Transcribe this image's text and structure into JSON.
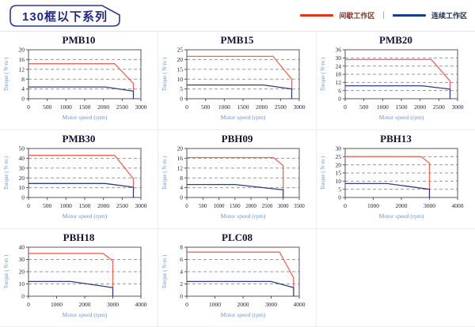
{
  "header": {
    "title": "130框以下系列",
    "legend_separator": "|",
    "legend": [
      {
        "label": "间歇工作区",
        "color": "#e0341b",
        "zone": "intermittent"
      },
      {
        "label": "连续工作区",
        "color": "#1e3a8c",
        "zone": "continuous"
      }
    ]
  },
  "colors": {
    "intermittent": "#e4695c",
    "continuous": "#2e3d7c",
    "grid": "#9a9a9a",
    "frame": "#55555e",
    "tick_text": "#1c1c30",
    "axis_label": "#6c96d6",
    "title_text": "#141432",
    "tag_border": "#2b3a8c"
  },
  "axis_labels": {
    "x": "Motor speed (rpm)",
    "y": "Torque ( N·m )"
  },
  "chart_data": [
    {
      "type": "line",
      "title": "PMB10",
      "xlabel": "Motor speed (rpm)",
      "ylabel": "Torque ( N·m )",
      "xlim": [
        0,
        3000
      ],
      "xticks": [
        0,
        500,
        1000,
        1500,
        2000,
        2500,
        3000
      ],
      "ylim": [
        0,
        20
      ],
      "yticks": [
        0,
        4,
        8,
        12,
        16,
        20
      ],
      "series": [
        {
          "name": "间歇工作区",
          "zone": "intermittent",
          "points": [
            [
              0,
              14.3
            ],
            [
              2300,
              14.3
            ],
            [
              2800,
              6.2
            ],
            [
              2800,
              3.2
            ]
          ]
        },
        {
          "name": "连续工作区",
          "zone": "continuous",
          "points": [
            [
              0,
              4.8
            ],
            [
              2050,
              4.8
            ],
            [
              2800,
              3.1
            ],
            [
              2800,
              0
            ]
          ]
        }
      ]
    },
    {
      "type": "line",
      "title": "PMB15",
      "xlabel": "Motor speed (rpm)",
      "ylabel": "Torque ( N·m )",
      "xlim": [
        0,
        3000
      ],
      "xticks": [
        0,
        500,
        1000,
        1500,
        2000,
        2500,
        3000
      ],
      "ylim": [
        0,
        25
      ],
      "yticks": [
        0,
        5,
        10,
        15,
        20,
        25
      ],
      "series": [
        {
          "name": "间歇工作区",
          "zone": "intermittent",
          "points": [
            [
              0,
              21.6
            ],
            [
              2300,
              21.6
            ],
            [
              2800,
              10
            ],
            [
              2800,
              5
            ]
          ]
        },
        {
          "name": "连续工作区",
          "zone": "continuous",
          "points": [
            [
              0,
              7
            ],
            [
              2050,
              7
            ],
            [
              2800,
              5
            ],
            [
              2800,
              0
            ]
          ]
        }
      ]
    },
    {
      "type": "line",
      "title": "PMB20",
      "xlabel": "Motor speed (rpm)",
      "ylabel": "Torque ( N·m )",
      "xlim": [
        0,
        3000
      ],
      "xticks": [
        0,
        500,
        1000,
        1500,
        2000,
        2500,
        3000
      ],
      "ylim": [
        0,
        36
      ],
      "yticks": [
        0,
        6,
        12,
        18,
        24,
        30,
        36
      ],
      "series": [
        {
          "name": "间歇工作区",
          "zone": "intermittent",
          "points": [
            [
              0,
              28.8
            ],
            [
              2300,
              28.8
            ],
            [
              2800,
              13
            ],
            [
              2800,
              7
            ]
          ]
        },
        {
          "name": "连续工作区",
          "zone": "continuous",
          "points": [
            [
              0,
              9.5
            ],
            [
              2050,
              9.5
            ],
            [
              2800,
              7
            ],
            [
              2800,
              0
            ]
          ]
        }
      ]
    },
    {
      "type": "line",
      "title": "PMB30",
      "xlabel": "Motor speed (rpm)",
      "ylabel": "Torque ( N·m )",
      "xlim": [
        0,
        3000
      ],
      "xticks": [
        0,
        500,
        1000,
        1500,
        2000,
        2500,
        3000
      ],
      "ylim": [
        0,
        50
      ],
      "yticks": [
        0,
        10,
        20,
        30,
        40,
        50
      ],
      "series": [
        {
          "name": "间歇工作区",
          "zone": "intermittent",
          "points": [
            [
              0,
              43
            ],
            [
              2300,
              43
            ],
            [
              2800,
              19
            ],
            [
              2800,
              11
            ]
          ]
        },
        {
          "name": "连续工作区",
          "zone": "continuous",
          "points": [
            [
              0,
              14.3
            ],
            [
              2050,
              14.3
            ],
            [
              2800,
              10.5
            ],
            [
              2800,
              0
            ]
          ]
        }
      ]
    },
    {
      "type": "line",
      "title": "PBH09",
      "xlabel": "Motor speed (rpm)",
      "ylabel": "Torque ( N·m )",
      "xlim": [
        0,
        3500
      ],
      "xticks": [
        0,
        500,
        1000,
        1500,
        2000,
        2500,
        3000,
        3500
      ],
      "ylim": [
        0,
        20
      ],
      "yticks": [
        0,
        4,
        8,
        12,
        16,
        20
      ],
      "series": [
        {
          "name": "间歇工作区",
          "zone": "intermittent",
          "points": [
            [
              0,
              16.3
            ],
            [
              2700,
              16.3
            ],
            [
              3000,
              13
            ],
            [
              3000,
              3.1
            ]
          ]
        },
        {
          "name": "连续工作区",
          "zone": "continuous",
          "points": [
            [
              0,
              5.3
            ],
            [
              1500,
              5.3
            ],
            [
              3000,
              3.1
            ],
            [
              3000,
              0
            ]
          ]
        }
      ]
    },
    {
      "type": "line",
      "title": "PBH13",
      "xlabel": "Motor speed (rpm)",
      "ylabel": "Torque ( N·m )",
      "xlim": [
        0,
        4000
      ],
      "xticks": [
        0,
        1000,
        2000,
        3000,
        4000
      ],
      "ylim": [
        0,
        30
      ],
      "yticks": [
        0,
        5,
        10,
        15,
        20,
        25,
        30
      ],
      "series": [
        {
          "name": "间歇工作区",
          "zone": "intermittent",
          "points": [
            [
              0,
              25
            ],
            [
              2700,
              25
            ],
            [
              3000,
              21
            ],
            [
              3000,
              5
            ]
          ]
        },
        {
          "name": "连续工作区",
          "zone": "continuous",
          "points": [
            [
              0,
              8.5
            ],
            [
              1500,
              8.5
            ],
            [
              3000,
              5
            ],
            [
              3000,
              0
            ]
          ]
        }
      ]
    },
    {
      "type": "line",
      "title": "PBH18",
      "xlabel": "Motor speed (rpm)",
      "ylabel": "Torque ( N·m )",
      "xlim": [
        0,
        4000
      ],
      "xticks": [
        0,
        1000,
        2000,
        3000,
        4000
      ],
      "ylim": [
        0,
        40
      ],
      "yticks": [
        0,
        10,
        20,
        30,
        40
      ],
      "series": [
        {
          "name": "间歇工作区",
          "zone": "intermittent",
          "points": [
            [
              0,
              35
            ],
            [
              2650,
              35
            ],
            [
              3000,
              29
            ],
            [
              3000,
              7
            ]
          ]
        },
        {
          "name": "连续工作区",
          "zone": "continuous",
          "points": [
            [
              0,
              12
            ],
            [
              1500,
              12
            ],
            [
              3000,
              7
            ],
            [
              3000,
              0
            ]
          ]
        }
      ]
    },
    {
      "type": "line",
      "title": "PLC08",
      "xlabel": "Motor speed (rpm)",
      "ylabel": "Torque ( N·m )",
      "xlim": [
        0,
        4000
      ],
      "xticks": [
        0,
        1000,
        2000,
        3000,
        4000
      ],
      "ylim": [
        0,
        8
      ],
      "yticks": [
        0,
        2,
        4,
        6,
        8
      ],
      "series": [
        {
          "name": "间歇工作区",
          "zone": "intermittent",
          "points": [
            [
              0,
              7.2
            ],
            [
              3300,
              7.2
            ],
            [
              3800,
              3
            ],
            [
              3800,
              1.5
            ]
          ]
        },
        {
          "name": "连续工作区",
          "zone": "continuous",
          "points": [
            [
              0,
              2.4
            ],
            [
              3000,
              2.4
            ],
            [
              3800,
              1.4
            ],
            [
              3800,
              0
            ]
          ]
        }
      ]
    }
  ]
}
